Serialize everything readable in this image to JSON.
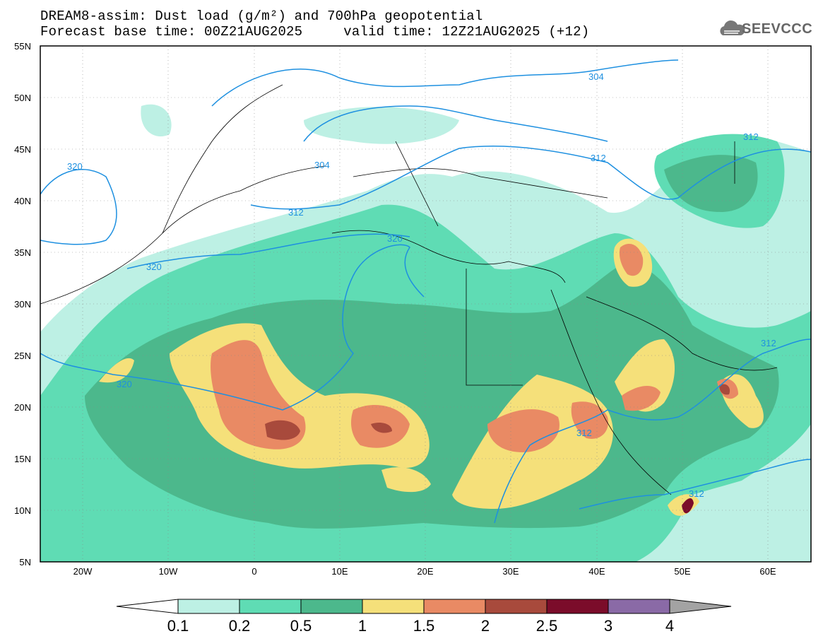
{
  "title": {
    "line1": "DREAM8-assim: Dust load (g/m²) and 700hPa geopotential",
    "line2": "Forecast base time: 00Z21AUG2025     valid time: 12Z21AUG2025 (+12)"
  },
  "logo": {
    "text": "SEEVCCC",
    "icon": "cloud-icon"
  },
  "axes": {
    "lat_labels": [
      "55N",
      "50N",
      "45N",
      "40N",
      "35N",
      "30N",
      "25N",
      "20N",
      "15N",
      "10N",
      "5N"
    ],
    "lon_labels": [
      "20W",
      "10W",
      "0",
      "10E",
      "20E",
      "30E",
      "40E",
      "50E",
      "60E"
    ],
    "lat_range": [
      5,
      55
    ],
    "lon_range": [
      -25,
      65
    ]
  },
  "colorbar": {
    "labels": [
      "0.1",
      "0.2",
      "0.5",
      "1",
      "1.5",
      "2",
      "2.5",
      "3",
      "4"
    ],
    "colors": [
      "#bdf0e4",
      "#5fdcb4",
      "#4cb88c",
      "#f5e07a",
      "#e98a64",
      "#a84a3c",
      "#7b0c2a",
      "#8a6aa6",
      "#a3a3a3"
    ],
    "under_color": "#ffffff"
  },
  "contours": {
    "color": "#1e90e0",
    "labels": [
      "304",
      "304",
      "312",
      "312",
      "312",
      "312",
      "312",
      "312",
      "320",
      "320",
      "320",
      "320"
    ]
  }
}
